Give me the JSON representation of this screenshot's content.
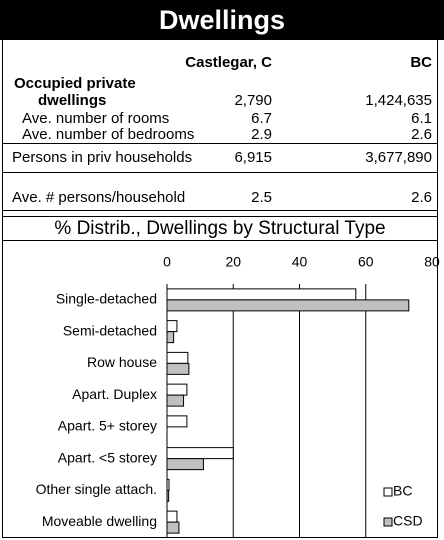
{
  "header": {
    "title": "Dwellings"
  },
  "table": {
    "columns": [
      "Castlegar, C",
      "BC"
    ],
    "rows": [
      {
        "label": "Occupied private dwellings",
        "values": [
          "2,790",
          "1,424,635"
        ]
      },
      {
        "label": "Ave. number of rooms",
        "values": [
          "6.7",
          "6.1"
        ]
      },
      {
        "label": "Ave. number of bedrooms",
        "values": [
          "2.9",
          "2.6"
        ]
      },
      {
        "label": "Persons in priv households",
        "values": [
          "6,915",
          "3,677,890"
        ]
      },
      {
        "label": "Ave. # persons/household",
        "values": [
          "2.5",
          "2.6"
        ]
      }
    ]
  },
  "chart_data": {
    "type": "hbar",
    "title": "% Distrib., Dwellings by Structural Type",
    "categories": [
      "Single-detached",
      "Semi-detached",
      "Row house",
      "Apart. Duplex",
      "Apart. 5+ storey",
      "Apart. <5 storey",
      "Other single attach.",
      "Moveable dwelling"
    ],
    "series": [
      {
        "name": "BC",
        "color": "#ffffff",
        "values": [
          57,
          3,
          6.3,
          6,
          6,
          20,
          0.6,
          3
        ]
      },
      {
        "name": "CSD",
        "color": "#c0c0c0",
        "values": [
          73,
          2,
          6.6,
          5,
          0,
          11,
          0.5,
          3.6
        ]
      }
    ],
    "xlim": [
      0,
      80
    ],
    "xticks": [
      0,
      20,
      40,
      60,
      80
    ],
    "grid": true
  }
}
